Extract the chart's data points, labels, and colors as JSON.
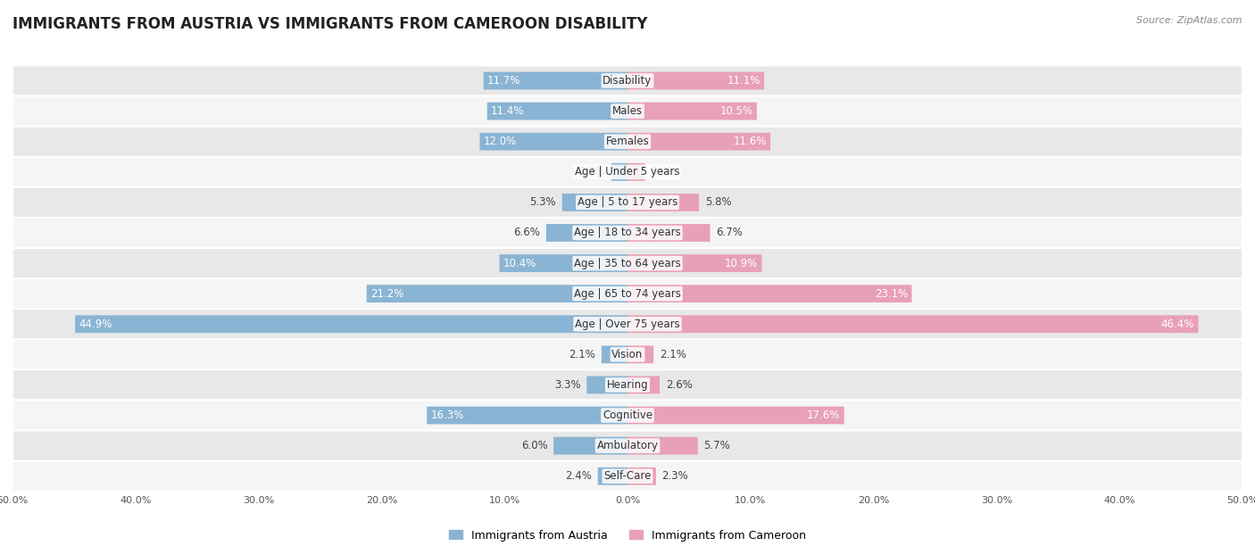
{
  "title": "IMMIGRANTS FROM AUSTRIA VS IMMIGRANTS FROM CAMEROON DISABILITY",
  "source": "Source: ZipAtlas.com",
  "categories": [
    "Disability",
    "Males",
    "Females",
    "Age | Under 5 years",
    "Age | 5 to 17 years",
    "Age | 18 to 34 years",
    "Age | 35 to 64 years",
    "Age | 65 to 74 years",
    "Age | Over 75 years",
    "Vision",
    "Hearing",
    "Cognitive",
    "Ambulatory",
    "Self-Care"
  ],
  "austria_values": [
    11.7,
    11.4,
    12.0,
    1.3,
    5.3,
    6.6,
    10.4,
    21.2,
    44.9,
    2.1,
    3.3,
    16.3,
    6.0,
    2.4
  ],
  "cameroon_values": [
    11.1,
    10.5,
    11.6,
    1.4,
    5.8,
    6.7,
    10.9,
    23.1,
    46.4,
    2.1,
    2.6,
    17.6,
    5.7,
    2.3
  ],
  "austria_color": "#8ab4d4",
  "cameroon_color": "#e8a0b8",
  "austria_label": "Immigrants from Austria",
  "cameroon_label": "Immigrants from Cameroon",
  "axis_limit": 50.0,
  "bg_color": "#ffffff",
  "row_alt_color": "#e8e8e8",
  "row_white_color": "#f5f5f5",
  "bar_height": 0.55,
  "label_fontsize": 8.5,
  "title_fontsize": 12,
  "category_fontsize": 8.5,
  "axis_label_fontsize": 8
}
